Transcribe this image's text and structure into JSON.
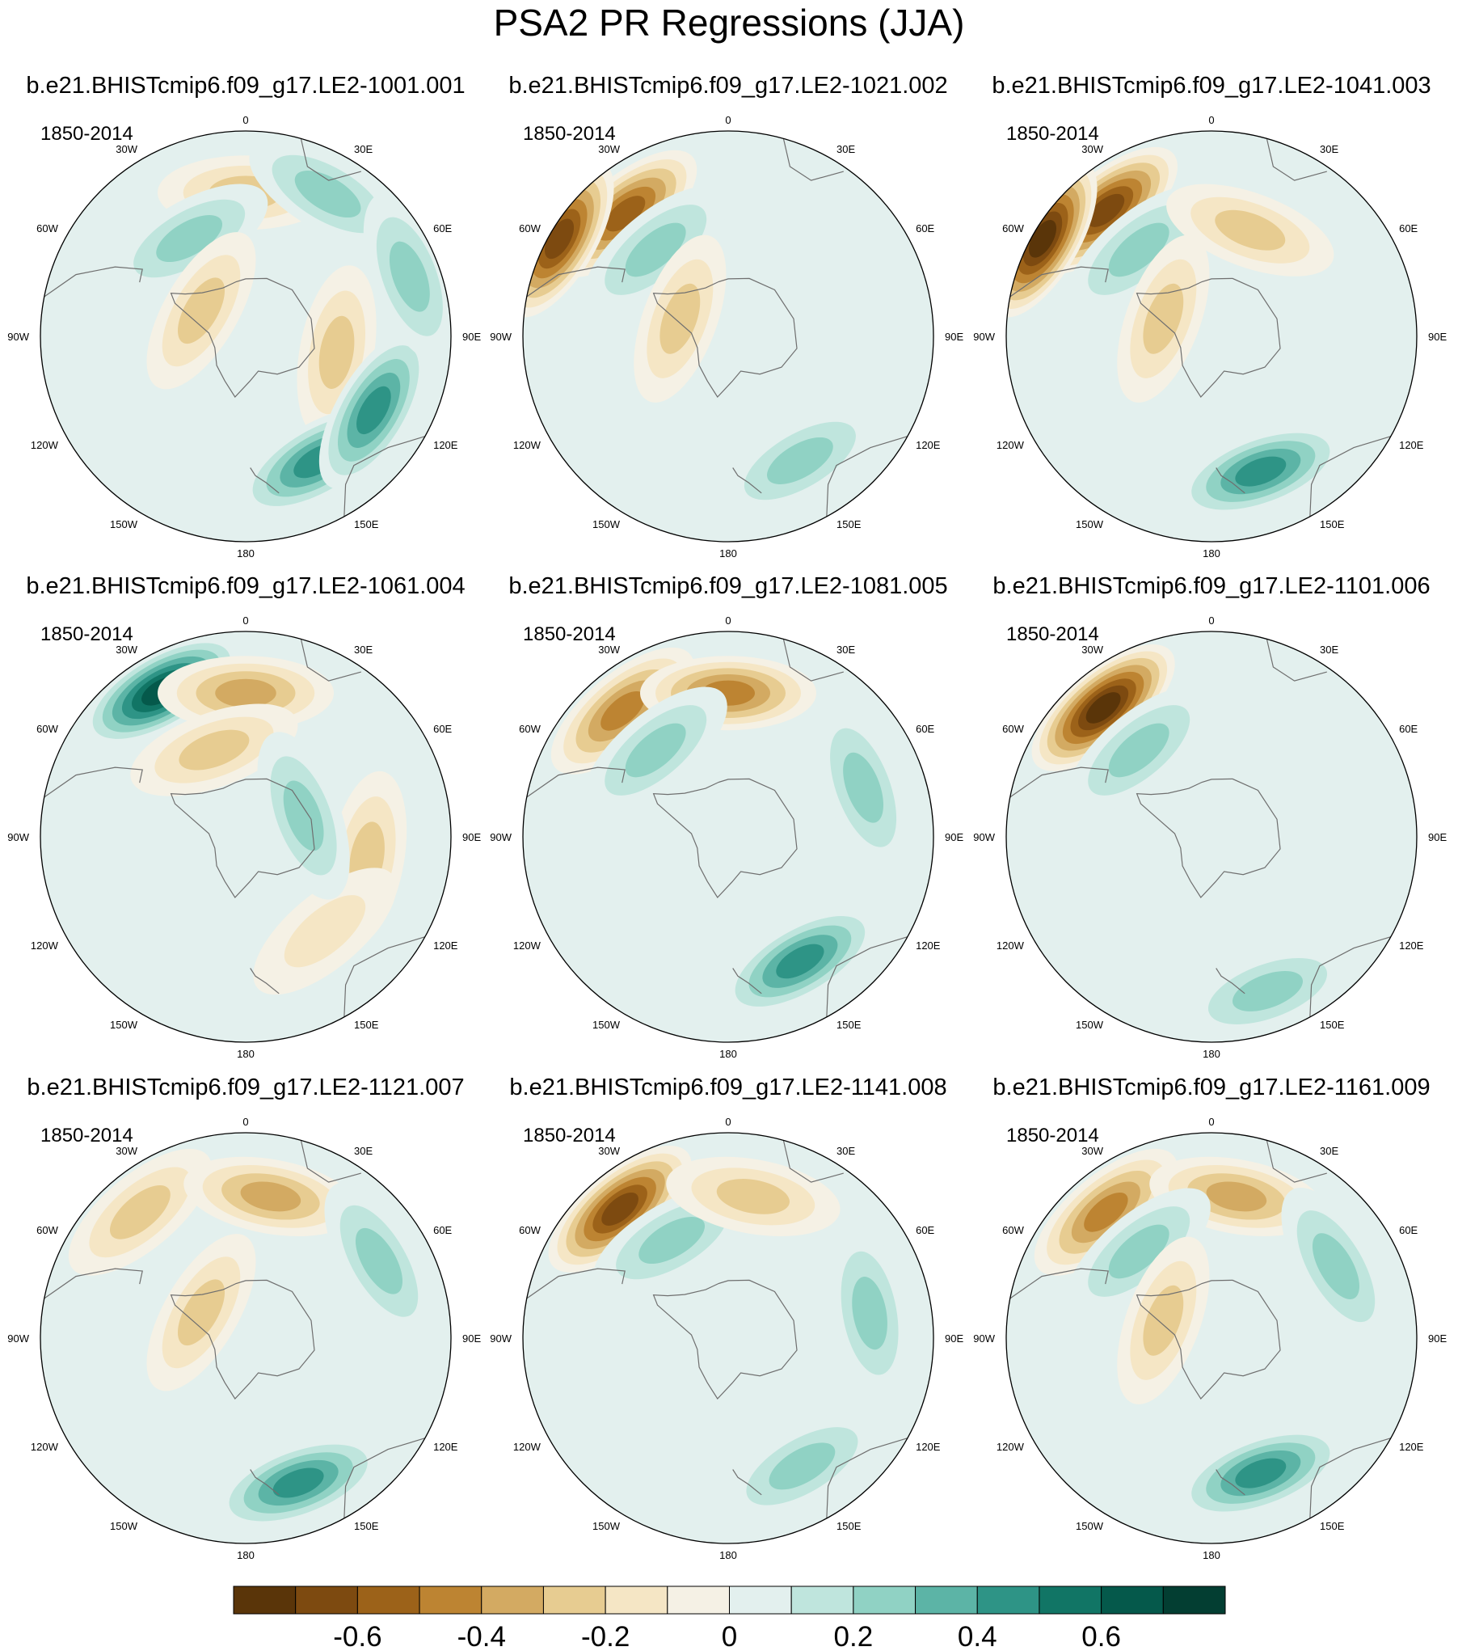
{
  "title": "PSA2 PR Regressions (JJA)",
  "chart_data": {
    "type": "polar-contour-map-grid",
    "title": "PSA2 PR Regressions (JJA)",
    "projection": "south-polar-stereographic",
    "longitude_labels": [
      "0",
      "30E",
      "60E",
      "90E",
      "120E",
      "150E",
      "180",
      "150W",
      "120W",
      "90W",
      "60W",
      "30W"
    ],
    "panels": [
      {
        "name": "b.e21.BHISTcmip6.f09_g17.LE2-1001.001",
        "period": "1850-2014"
      },
      {
        "name": "b.e21.BHISTcmip6.f09_g17.LE2-1021.002",
        "period": "1850-2014"
      },
      {
        "name": "b.e21.BHISTcmip6.f09_g17.LE2-1041.003",
        "period": "1850-2014"
      },
      {
        "name": "b.e21.BHISTcmip6.f09_g17.LE2-1061.004",
        "period": "1850-2014"
      },
      {
        "name": "b.e21.BHISTcmip6.f09_g17.LE2-1081.005",
        "period": "1850-2014"
      },
      {
        "name": "b.e21.BHISTcmip6.f09_g17.LE2-1101.006",
        "period": "1850-2014"
      },
      {
        "name": "b.e21.BHISTcmip6.f09_g17.LE2-1121.007",
        "period": "1850-2014"
      },
      {
        "name": "b.e21.BHISTcmip6.f09_g17.LE2-1141.008",
        "period": "1850-2014"
      },
      {
        "name": "b.e21.BHISTcmip6.f09_g17.LE2-1161.009",
        "period": "1850-2014"
      }
    ],
    "colorbar": {
      "colors": [
        "#5a3509",
        "#7d4a10",
        "#9c6219",
        "#bd8432",
        "#d3aa62",
        "#e7cc91",
        "#f5e6c5",
        "#f5f1e5",
        "#e3f0ee",
        "#bfe5dd",
        "#90d2c4",
        "#5cb4a6",
        "#2e9486",
        "#117565",
        "#05594b",
        "#033e32"
      ],
      "tick_labels": [
        "-0.6",
        "-0.4",
        "-0.2",
        "0",
        "0.2",
        "0.4",
        "0.6"
      ],
      "tick_values": [
        -0.6,
        -0.4,
        -0.2,
        0,
        0.2,
        0.4,
        0.6
      ],
      "levels": [
        -0.7,
        -0.6,
        -0.5,
        -0.4,
        -0.3,
        -0.2,
        -0.1,
        0,
        0.1,
        0.2,
        0.3,
        0.4,
        0.5,
        0.6,
        0.7
      ]
    },
    "anomalies_description": [
      [
        {
          "lon": 0,
          "r": 0.7,
          "v": -0.35
        },
        {
          "lon": 30,
          "r": 0.8,
          "v": 0.3
        },
        {
          "lon": 100,
          "r": 0.45,
          "v": -0.25
        },
        {
          "lon": 150,
          "r": 0.7,
          "v": 0.45
        },
        {
          "lon": 120,
          "r": 0.72,
          "v": 0.5
        },
        {
          "lon": -30,
          "r": 0.55,
          "v": 0.3
        },
        {
          "lon": -60,
          "r": 0.25,
          "v": -0.3
        },
        {
          "lon": 70,
          "r": 0.85,
          "v": 0.35
        }
      ],
      [
        {
          "lon": -40,
          "r": 0.78,
          "v": -0.6
        },
        {
          "lon": -60,
          "r": 0.95,
          "v": -0.7
        },
        {
          "lon": -40,
          "r": 0.55,
          "v": 0.35
        },
        {
          "lon": 150,
          "r": 0.7,
          "v": 0.25
        },
        {
          "lon": 60,
          "r": 0.55,
          "v": 0.1
        },
        {
          "lon": -70,
          "r": 0.25,
          "v": -0.3
        }
      ],
      [
        {
          "lon": -40,
          "r": 0.8,
          "v": -0.7
        },
        {
          "lon": -60,
          "r": 0.95,
          "v": -0.75
        },
        {
          "lon": -40,
          "r": 0.55,
          "v": 0.35
        },
        {
          "lon": 160,
          "r": 0.7,
          "v": 0.45
        },
        {
          "lon": 20,
          "r": 0.55,
          "v": -0.3
        },
        {
          "lon": -70,
          "r": 0.25,
          "v": -0.3
        }
      ],
      [
        {
          "lon": -30,
          "r": 0.82,
          "v": 0.65
        },
        {
          "lon": 0,
          "r": 0.7,
          "v": -0.4
        },
        {
          "lon": 100,
          "r": 0.6,
          "v": -0.35
        },
        {
          "lon": -20,
          "r": 0.45,
          "v": -0.3
        },
        {
          "lon": 140,
          "r": 0.6,
          "v": -0.2
        },
        {
          "lon": 70,
          "r": 0.3,
          "v": 0.25
        }
      ],
      [
        {
          "lon": -40,
          "r": 0.8,
          "v": -0.5
        },
        {
          "lon": 0,
          "r": 0.7,
          "v": -0.45
        },
        {
          "lon": 150,
          "r": 0.7,
          "v": 0.45
        },
        {
          "lon": 70,
          "r": 0.7,
          "v": 0.35
        },
        {
          "lon": -40,
          "r": 0.55,
          "v": 0.3
        }
      ],
      [
        {
          "lon": -40,
          "r": 0.82,
          "v": -0.75
        },
        {
          "lon": -40,
          "r": 0.55,
          "v": 0.35
        },
        {
          "lon": 160,
          "r": 0.8,
          "v": 0.35
        },
        {
          "lon": 60,
          "r": 0.55,
          "v": 0.15
        }
      ],
      [
        {
          "lon": -40,
          "r": 0.8,
          "v": -0.35
        },
        {
          "lon": 10,
          "r": 0.7,
          "v": -0.4
        },
        {
          "lon": 160,
          "r": 0.75,
          "v": 0.45
        },
        {
          "lon": 60,
          "r": 0.75,
          "v": 0.3
        },
        {
          "lon": -60,
          "r": 0.25,
          "v": -0.35
        }
      ],
      [
        {
          "lon": -40,
          "r": 0.82,
          "v": -0.7
        },
        {
          "lon": -30,
          "r": 0.55,
          "v": 0.3
        },
        {
          "lon": 80,
          "r": 0.7,
          "v": 0.3
        },
        {
          "lon": 150,
          "r": 0.72,
          "v": 0.3
        },
        {
          "lon": 10,
          "r": 0.7,
          "v": -0.25
        }
      ],
      [
        {
          "lon": -40,
          "r": 0.8,
          "v": -0.45
        },
        {
          "lon": 10,
          "r": 0.7,
          "v": -0.4
        },
        {
          "lon": 160,
          "r": 0.7,
          "v": 0.5
        },
        {
          "lon": -40,
          "r": 0.55,
          "v": 0.35
        },
        {
          "lon": 60,
          "r": 0.7,
          "v": 0.25
        },
        {
          "lon": -70,
          "r": 0.25,
          "v": -0.3
        }
      ]
    ]
  }
}
